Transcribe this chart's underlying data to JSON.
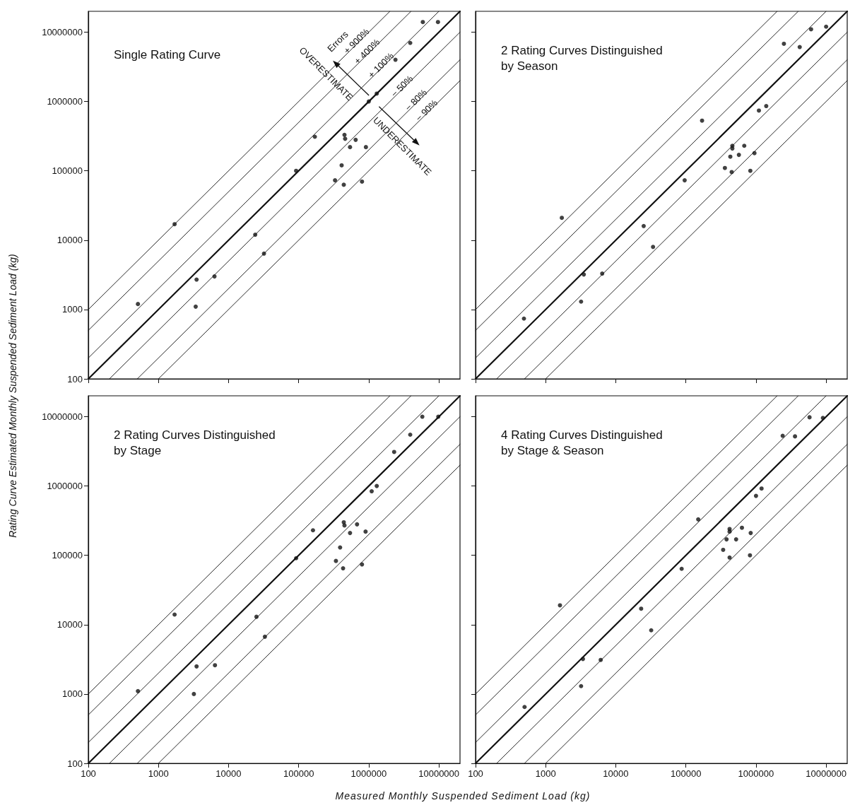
{
  "chart_data": [
    {
      "type": "scatter",
      "title": "Single Rating Curve",
      "ylabel": "Rating Curve Estimated Monthly Suspended Sediment Load (kg)",
      "log": "xy",
      "marker": "circle",
      "tick_labels": "y",
      "xlim": [
        100,
        20000000
      ],
      "ylim": [
        100,
        20000000
      ],
      "xticks": [
        100,
        1000,
        10000,
        100000,
        1000000,
        10000000
      ],
      "yticks": [
        100,
        1000,
        10000,
        100000,
        1000000,
        10000000
      ],
      "annotations": [
        "Errors",
        "OVERESTIMATE",
        "UNDERESTIMATE"
      ],
      "series": [
        {
          "color": "#111111",
          "x": [
            510,
            1700,
            3500,
            3400,
            6300,
            24000,
            32000,
            92000,
            170000,
            450000,
            460000,
            650000,
            540000,
            910000,
            410000,
            330000,
            440000,
            800000,
            1000000,
            1300000,
            2400000,
            3900000,
            5900000,
            9700000
          ],
          "values": [
            1200,
            17000,
            2700,
            1100,
            3000,
            12000,
            6400,
            100000,
            310000,
            330000,
            290000,
            280000,
            220000,
            220000,
            120000,
            73000,
            63000,
            70000,
            1000000,
            1300000,
            4000000,
            7000000,
            14000000,
            14000000
          ]
        },
        {
          "type": "line",
          "marker": "none",
          "name": "+ 900%",
          "color": "#111111",
          "x": [
            100,
            2000000
          ],
          "values": [
            1000,
            20000000
          ]
        },
        {
          "type": "line",
          "marker": "none",
          "name": "+ 400%",
          "color": "#111111",
          "x": [
            100,
            4000000
          ],
          "values": [
            500,
            20000000
          ]
        },
        {
          "type": "line",
          "marker": "none",
          "name": "+ 100%",
          "color": "#111111",
          "x": [
            100,
            10000000
          ],
          "values": [
            200,
            20000000
          ]
        },
        {
          "type": "line",
          "marker": "none",
          "color": "#111111",
          "x": [
            100,
            20000000
          ],
          "values": [
            100,
            20000000
          ]
        },
        {
          "type": "line",
          "marker": "none",
          "name": "− 50%",
          "color": "#111111",
          "x": [
            200,
            20000000
          ],
          "values": [
            100,
            10000000
          ]
        },
        {
          "type": "line",
          "marker": "none",
          "name": "− 80%",
          "color": "#111111",
          "x": [
            500,
            20000000
          ],
          "values": [
            100,
            4000000
          ]
        },
        {
          "type": "line",
          "marker": "none",
          "name": "− 90%",
          "color": "#111111",
          "x": [
            1000,
            20000000
          ],
          "values": [
            100,
            2000000
          ]
        }
      ]
    },
    {
      "type": "scatter",
      "title": "2 Rating Curves Distinguished\nby Season",
      "log": "xy",
      "marker": "circle",
      "tick_labels": false,
      "xlim": [
        100,
        20000000
      ],
      "ylim": [
        100,
        20000000
      ],
      "xticks": [
        100,
        1000,
        10000,
        100000,
        1000000,
        10000000
      ],
      "yticks": [
        100,
        1000,
        10000,
        100000,
        1000000,
        10000000
      ],
      "series": [
        {
          "color": "#111111",
          "x": [
            490,
            1700,
            3500,
            3200,
            6400,
            25000,
            34000,
            96000,
            170000,
            460000,
            460000,
            680000,
            430000,
            570000,
            950000,
            360000,
            450000,
            830000,
            1100000,
            1400000,
            2500000,
            4200000,
            6100000,
            10000000
          ],
          "values": [
            740,
            21000,
            3200,
            1300,
            3300,
            16000,
            8000,
            73000,
            530000,
            230000,
            210000,
            230000,
            160000,
            170000,
            180000,
            110000,
            96000,
            100000,
            740000,
            860000,
            6800000,
            6100000,
            11000000,
            12000000
          ]
        },
        {
          "type": "line",
          "marker": "none",
          "color": "#111111",
          "x": [
            100,
            2000000
          ],
          "values": [
            1000,
            20000000
          ]
        },
        {
          "type": "line",
          "marker": "none",
          "color": "#111111",
          "x": [
            100,
            4000000
          ],
          "values": [
            500,
            20000000
          ]
        },
        {
          "type": "line",
          "marker": "none",
          "color": "#111111",
          "x": [
            100,
            10000000
          ],
          "values": [
            200,
            20000000
          ]
        },
        {
          "type": "line",
          "marker": "none",
          "color": "#111111",
          "x": [
            100,
            20000000
          ],
          "values": [
            100,
            20000000
          ]
        },
        {
          "type": "line",
          "marker": "none",
          "color": "#111111",
          "x": [
            200,
            20000000
          ],
          "values": [
            100,
            10000000
          ]
        },
        {
          "type": "line",
          "marker": "none",
          "color": "#111111",
          "x": [
            500,
            20000000
          ],
          "values": [
            100,
            4000000
          ]
        },
        {
          "type": "line",
          "marker": "none",
          "color": "#111111",
          "x": [
            1000,
            20000000
          ],
          "values": [
            100,
            2000000
          ]
        }
      ]
    },
    {
      "type": "scatter",
      "title": "2 Rating Curves Distinguished\nby Stage",
      "xlabel": "Measured Monthly Suspended Sediment Load (kg)",
      "log": "xy",
      "marker": "circle",
      "xlim": [
        100,
        20000000
      ],
      "ylim": [
        100,
        20000000
      ],
      "xticks": [
        100,
        1000,
        10000,
        100000,
        1000000,
        10000000
      ],
      "yticks": [
        100,
        1000,
        10000,
        100000,
        1000000,
        10000000
      ],
      "series": [
        {
          "color": "#111111",
          "x": [
            510,
            1700,
            3500,
            3200,
            6400,
            25000,
            33000,
            92000,
            160000,
            440000,
            450000,
            680000,
            540000,
            900000,
            390000,
            340000,
            430000,
            800000,
            1100000,
            1300000,
            2300000,
            3900000,
            5800000,
            9800000
          ],
          "values": [
            1100,
            14000,
            2500,
            1000,
            2600,
            13000,
            6700,
            91000,
            230000,
            300000,
            270000,
            280000,
            210000,
            220000,
            130000,
            83000,
            65000,
            74000,
            840000,
            1000000,
            3100000,
            5500000,
            10000000,
            10000000
          ]
        },
        {
          "type": "line",
          "marker": "none",
          "color": "#111111",
          "x": [
            100,
            2000000
          ],
          "values": [
            1000,
            20000000
          ]
        },
        {
          "type": "line",
          "marker": "none",
          "color": "#111111",
          "x": [
            100,
            4000000
          ],
          "values": [
            500,
            20000000
          ]
        },
        {
          "type": "line",
          "marker": "none",
          "color": "#111111",
          "x": [
            100,
            10000000
          ],
          "values": [
            200,
            20000000
          ]
        },
        {
          "type": "line",
          "marker": "none",
          "color": "#111111",
          "x": [
            100,
            20000000
          ],
          "values": [
            100,
            20000000
          ]
        },
        {
          "type": "line",
          "marker": "none",
          "color": "#111111",
          "x": [
            200,
            20000000
          ],
          "values": [
            100,
            10000000
          ]
        },
        {
          "type": "line",
          "marker": "none",
          "color": "#111111",
          "x": [
            500,
            20000000
          ],
          "values": [
            100,
            4000000
          ]
        },
        {
          "type": "line",
          "marker": "none",
          "color": "#111111",
          "x": [
            1000,
            20000000
          ],
          "values": [
            100,
            2000000
          ]
        }
      ]
    },
    {
      "type": "scatter",
      "title": "4 Rating Curves Distinguished\nby Stage & Season",
      "log": "xy",
      "marker": "circle",
      "tick_labels": "x",
      "xlim": [
        100,
        20000000
      ],
      "ylim": [
        100,
        20000000
      ],
      "xticks": [
        100,
        1000,
        10000,
        100000,
        1000000,
        10000000
      ],
      "yticks": [
        100,
        1000,
        10000,
        100000,
        1000000,
        10000000
      ],
      "series": [
        {
          "color": "#111111",
          "x": [
            500,
            1600,
            3400,
            3200,
            6100,
            23000,
            32000,
            87000,
            150000,
            420000,
            420000,
            630000,
            380000,
            520000,
            840000,
            340000,
            420000,
            820000,
            1000000,
            1200000,
            2400000,
            3600000,
            5800000,
            9000000
          ],
          "values": [
            650,
            19000,
            3200,
            1300,
            3100,
            17000,
            8300,
            64000,
            330000,
            240000,
            220000,
            250000,
            170000,
            170000,
            210000,
            120000,
            93000,
            100000,
            720000,
            920000,
            5300000,
            5200000,
            9800000,
            9600000
          ]
        },
        {
          "type": "line",
          "marker": "none",
          "color": "#111111",
          "x": [
            100,
            2000000
          ],
          "values": [
            1000,
            20000000
          ]
        },
        {
          "type": "line",
          "marker": "none",
          "color": "#111111",
          "x": [
            100,
            4000000
          ],
          "values": [
            500,
            20000000
          ]
        },
        {
          "type": "line",
          "marker": "none",
          "color": "#111111",
          "x": [
            100,
            10000000
          ],
          "values": [
            200,
            20000000
          ]
        },
        {
          "type": "line",
          "marker": "none",
          "color": "#111111",
          "x": [
            100,
            20000000
          ],
          "values": [
            100,
            20000000
          ]
        },
        {
          "type": "line",
          "marker": "none",
          "color": "#111111",
          "x": [
            200,
            20000000
          ],
          "values": [
            100,
            10000000
          ]
        },
        {
          "type": "line",
          "marker": "none",
          "color": "#111111",
          "x": [
            500,
            20000000
          ],
          "values": [
            100,
            4000000
          ]
        },
        {
          "type": "line",
          "marker": "none",
          "color": "#111111",
          "x": [
            1000,
            20000000
          ],
          "values": [
            100,
            2000000
          ]
        }
      ]
    }
  ]
}
